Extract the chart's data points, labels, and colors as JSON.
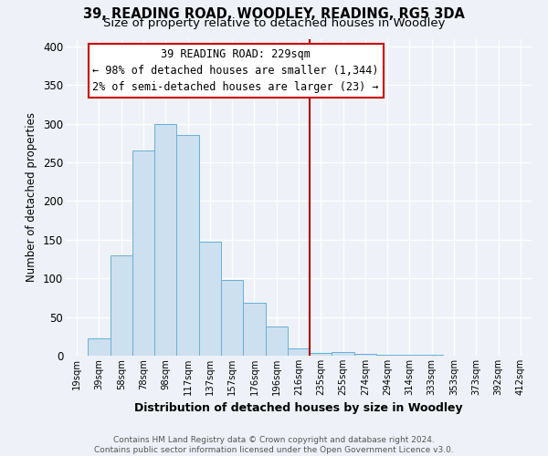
{
  "title": "39, READING ROAD, WOODLEY, READING, RG5 3DA",
  "subtitle": "Size of property relative to detached houses in Woodley",
  "xlabel": "Distribution of detached houses by size in Woodley",
  "ylabel": "Number of detached properties",
  "bar_labels": [
    "19sqm",
    "39sqm",
    "58sqm",
    "78sqm",
    "98sqm",
    "117sqm",
    "137sqm",
    "157sqm",
    "176sqm",
    "196sqm",
    "216sqm",
    "235sqm",
    "255sqm",
    "274sqm",
    "294sqm",
    "314sqm",
    "333sqm",
    "353sqm",
    "373sqm",
    "392sqm",
    "412sqm"
  ],
  "bar_heights": [
    0,
    22,
    130,
    265,
    300,
    285,
    147,
    98,
    68,
    38,
    9,
    4,
    5,
    2,
    1,
    1,
    1,
    0,
    0,
    0,
    0
  ],
  "bar_color": "#cce0f0",
  "bar_edgecolor": "#6aafd6",
  "vline_x_index": 11,
  "vline_color": "#aa0000",
  "annotation_text_line1": "39 READING ROAD: 229sqm",
  "annotation_text_line2": "← 98% of detached houses are smaller (1,344)",
  "annotation_text_line3": "2% of semi-detached houses are larger (23) →",
  "annotation_box_color": "#ffffff",
  "annotation_box_edgecolor": "#cc0000",
  "ylim": [
    0,
    410
  ],
  "yticks": [
    0,
    50,
    100,
    150,
    200,
    250,
    300,
    350,
    400
  ],
  "footnote_line1": "Contains HM Land Registry data © Crown copyright and database right 2024.",
  "footnote_line2": "Contains public sector information licensed under the Open Government Licence v3.0.",
  "bg_color": "#eef2f8",
  "grid_color": "#ffffff",
  "title_fontsize": 10.5,
  "subtitle_fontsize": 9.5,
  "annotation_fontsize": 8.5,
  "ylabel_fontsize": 8.5,
  "xlabel_fontsize": 9,
  "footnote_fontsize": 6.5
}
